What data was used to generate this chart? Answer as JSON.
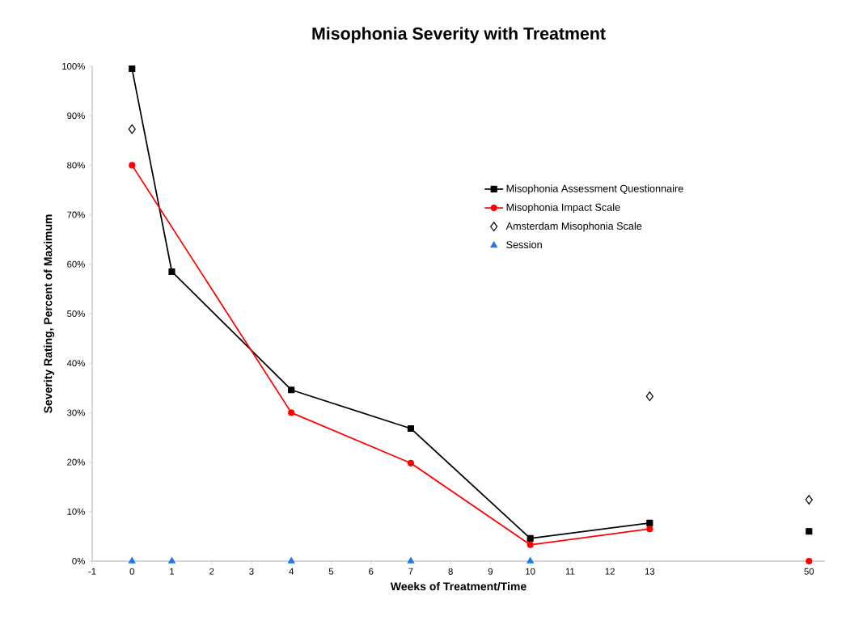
{
  "chart_data": {
    "type": "line",
    "title": "Misophonia Severity with Treatment",
    "xlabel": "Weeks of Treatment/Time",
    "ylabel": "Severity Rating, Percent of Maximum",
    "categories": [
      "-1",
      "0",
      "1",
      "2",
      "3",
      "4",
      "5",
      "6",
      "7",
      "8",
      "9",
      "10",
      "11",
      "12",
      "13",
      null,
      null,
      null,
      "50"
    ],
    "ylim": [
      0,
      100
    ],
    "yticks": [
      {
        "value": 0,
        "label": "0%"
      },
      {
        "value": 10,
        "label": "10%"
      },
      {
        "value": 20,
        "label": "20%"
      },
      {
        "value": 30,
        "label": "30%"
      },
      {
        "value": 40,
        "label": "40%"
      },
      {
        "value": 50,
        "label": "50%"
      },
      {
        "value": 60,
        "label": "60%"
      },
      {
        "value": 70,
        "label": "70%"
      },
      {
        "value": 80,
        "label": "80%"
      },
      {
        "value": 90,
        "label": "90%"
      },
      {
        "value": 100,
        "label": "100%"
      }
    ],
    "grid": false,
    "legend": "right",
    "line_style": "solid",
    "series": [
      {
        "name": "Misophonia Assessment Questionnaire",
        "color": "#000000",
        "marker": "square",
        "values": [
          null,
          99.5,
          58.5,
          null,
          null,
          34.6,
          null,
          null,
          26.8,
          null,
          null,
          4.6,
          null,
          null,
          7.7,
          null,
          null,
          null,
          null
        ]
      },
      {
        "name": "Misophonia Impact Scale",
        "color": "#ff0000",
        "marker": "circle",
        "values": [
          null,
          80,
          null,
          null,
          null,
          30,
          null,
          null,
          19.8,
          null,
          null,
          3.3,
          null,
          null,
          6.5,
          null,
          null,
          null,
          null
        ]
      },
      {
        "name": "Amsterdam Misophonia Scale",
        "type": "scatter",
        "color": "#000000",
        "marker": "diamond",
        "values": [
          null,
          87.3,
          null,
          null,
          null,
          null,
          null,
          null,
          null,
          null,
          null,
          null,
          null,
          null,
          33.3,
          null,
          null,
          null,
          12.4
        ]
      },
      {
        "name": "Session",
        "type": "scatter",
        "color": "#1e78e6",
        "marker": "triangle",
        "values": [
          null,
          0,
          0,
          null,
          null,
          0,
          null,
          null,
          0,
          null,
          null,
          0,
          null,
          null,
          null,
          null,
          null,
          null,
          null
        ]
      },
      {
        "type": "scatter",
        "color": "#000000",
        "marker": "square",
        "values": [
          null,
          null,
          null,
          null,
          null,
          null,
          null,
          null,
          null,
          null,
          null,
          null,
          null,
          null,
          null,
          null,
          null,
          null,
          6.0
        ]
      },
      {
        "type": "scatter",
        "color": "#ff0000",
        "marker": "circle",
        "values": [
          null,
          null,
          null,
          null,
          null,
          null,
          null,
          null,
          null,
          null,
          null,
          null,
          null,
          null,
          null,
          null,
          null,
          null,
          0
        ]
      }
    ]
  }
}
